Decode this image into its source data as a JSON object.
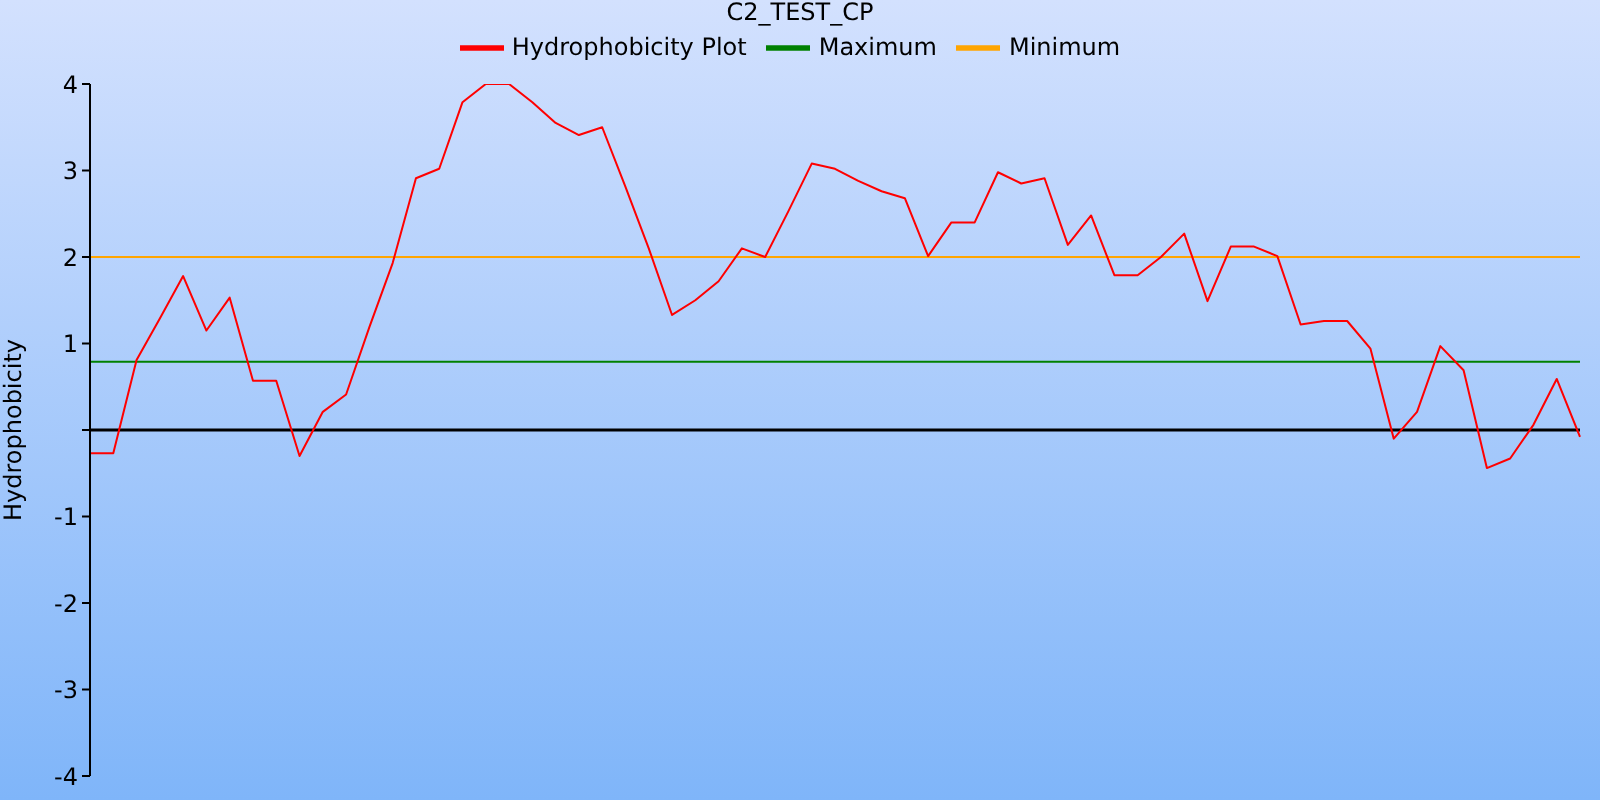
{
  "chart_data": {
    "type": "line",
    "title": "C2_TEST_CP",
    "ylabel": "Hydrophobicity",
    "categories": [
      null,
      null,
      null,
      null,
      null,
      null,
      null,
      null,
      null,
      null,
      null,
      null,
      null,
      null,
      null,
      null,
      null,
      null,
      null,
      null,
      null,
      null,
      null,
      null,
      null,
      null,
      null,
      null,
      null,
      null,
      null,
      null,
      null,
      null,
      null,
      null,
      null,
      null,
      null,
      null,
      null,
      null,
      null,
      null,
      null,
      null,
      null,
      null,
      null,
      null,
      null,
      null,
      null,
      null,
      null,
      null,
      null,
      null,
      null,
      null,
      null,
      null,
      null,
      null,
      null
    ],
    "series": [
      {
        "name": "Minimum",
        "color": "#ffa500",
        "values": [
          2,
          2,
          2,
          2,
          2,
          2,
          2,
          2,
          2,
          2,
          2,
          2,
          2,
          2,
          2,
          2,
          2,
          2,
          2,
          2,
          2,
          2,
          2,
          2,
          2,
          2,
          2,
          2,
          2,
          2,
          2,
          2,
          2,
          2,
          2,
          2,
          2,
          2,
          2,
          2,
          2,
          2,
          2,
          2,
          2,
          2,
          2,
          2,
          2,
          2,
          2,
          2,
          2,
          2,
          2,
          2,
          2,
          2,
          2,
          2,
          2,
          2,
          2,
          2,
          2
        ]
      },
      {
        "name": "Maximum",
        "color": "#008000",
        "values": [
          0.79,
          0.79,
          0.79,
          0.79,
          0.79,
          0.79,
          0.79,
          0.79,
          0.79,
          0.79,
          0.79,
          0.79,
          0.79,
          0.79,
          0.79,
          0.79,
          0.79,
          0.79,
          0.79,
          0.79,
          0.79,
          0.79,
          0.79,
          0.79,
          0.79,
          0.79,
          0.79,
          0.79,
          0.79,
          0.79,
          0.79,
          0.79,
          0.79,
          0.79,
          0.79,
          0.79,
          0.79,
          0.79,
          0.79,
          0.79,
          0.79,
          0.79,
          0.79,
          0.79,
          0.79,
          0.79,
          0.79,
          0.79,
          0.79,
          0.79,
          0.79,
          0.79,
          0.79,
          0.79,
          0.79,
          0.79,
          0.79,
          0.79,
          0.79,
          0.79,
          0.79,
          0.79,
          0.79,
          0.79,
          0.79
        ]
      },
      {
        "name": "Hydrophobicity Plot",
        "color": "#ff0000",
        "values": [
          -0.27,
          -0.27,
          0.81,
          1.29,
          1.78,
          1.15,
          1.53,
          0.57,
          0.57,
          -0.3,
          0.21,
          0.41,
          1.19,
          1.93,
          2.91,
          3.02,
          3.79,
          4.0,
          4.0,
          3.79,
          3.55,
          3.41,
          3.5,
          2.81,
          2.1,
          1.33,
          1.5,
          1.72,
          2.1,
          2.0,
          2.53,
          3.08,
          3.02,
          2.88,
          2.76,
          2.68,
          2.01,
          2.4,
          2.4,
          2.98,
          2.85,
          2.91,
          2.14,
          2.48,
          1.79,
          1.79,
          2.0,
          2.27,
          1.49,
          2.12,
          2.12,
          2.01,
          1.22,
          1.26,
          1.26,
          0.94,
          -0.1,
          0.21,
          0.97,
          0.69,
          -0.44,
          -0.33,
          0.06,
          0.59,
          -0.08
        ]
      }
    ],
    "ylim": [
      -4,
      4
    ],
    "yticks": [
      4,
      3,
      2,
      1,
      {
        "value": 0,
        "label": null
      },
      -1,
      -2,
      -3,
      -4
    ],
    "ref_lines": [
      {
        "axis": "y",
        "value": 0,
        "color": "#000000"
      }
    ],
    "grid": false,
    "legend": "top",
    "marker": "none",
    "line_style": "solid"
  }
}
